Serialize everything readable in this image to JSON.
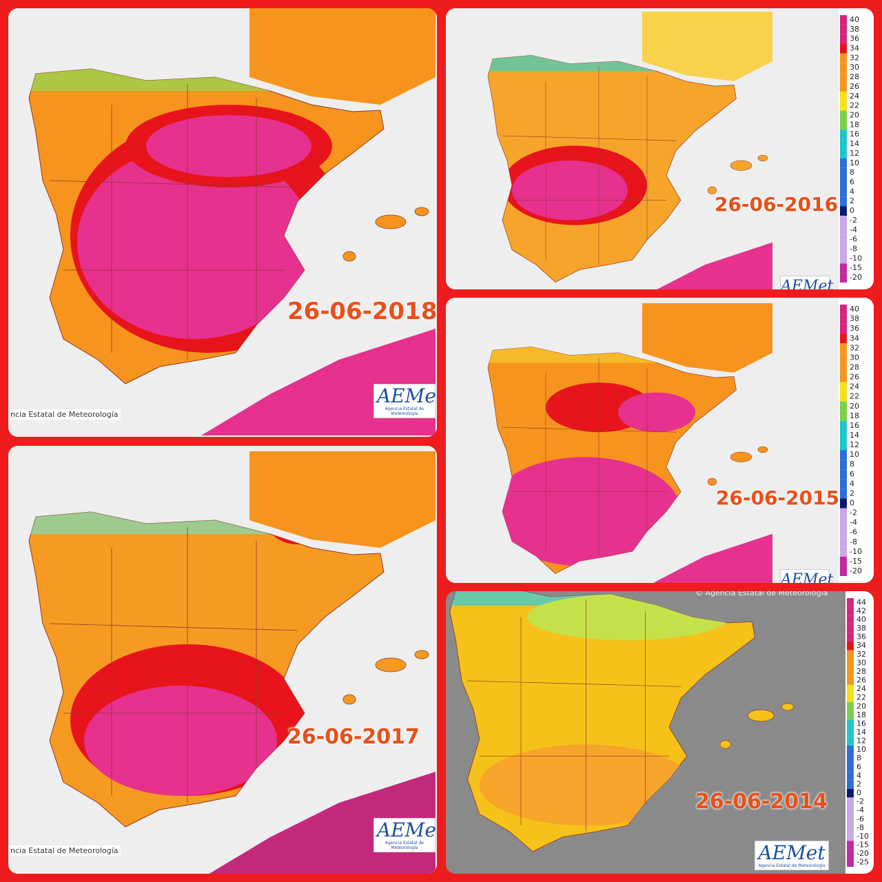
{
  "panels": [
    {
      "date": "26-06-2018",
      "credit": "ncia Estatal de Meteorología",
      "logo": "AEMet",
      "logo_subtitle": "Agencia Estatal de Meteorología"
    },
    {
      "date": "26-06-2017",
      "credit": "ncia Estatal de Meteorología",
      "logo": "AEMet",
      "logo_subtitle": "Agencia Estatal de Meteorología"
    },
    {
      "date": "26-06-2016",
      "logo": "AEMet"
    },
    {
      "date": "26-06-2015",
      "logo": "AEMet"
    },
    {
      "date": "26-06-2014",
      "logo": "AEMet",
      "logo_subtitle": "Agencia Estatal de Meteorología",
      "copyright": "© Agencia Estatal de Meteorología"
    }
  ],
  "legend_a": [
    40,
    38,
    36,
    34,
    32,
    30,
    28,
    26,
    24,
    22,
    20,
    18,
    16,
    14,
    12,
    10,
    8,
    6,
    4,
    2,
    0,
    -2,
    -4,
    -6,
    -8,
    -10,
    -15,
    -20
  ],
  "legend_b": [
    44,
    42,
    40,
    38,
    36,
    34,
    32,
    30,
    28,
    26,
    24,
    22,
    20,
    18,
    16,
    14,
    12,
    10,
    8,
    6,
    4,
    2,
    0,
    -2,
    -4,
    -6,
    -8,
    -10,
    -15,
    -20,
    -25
  ]
}
